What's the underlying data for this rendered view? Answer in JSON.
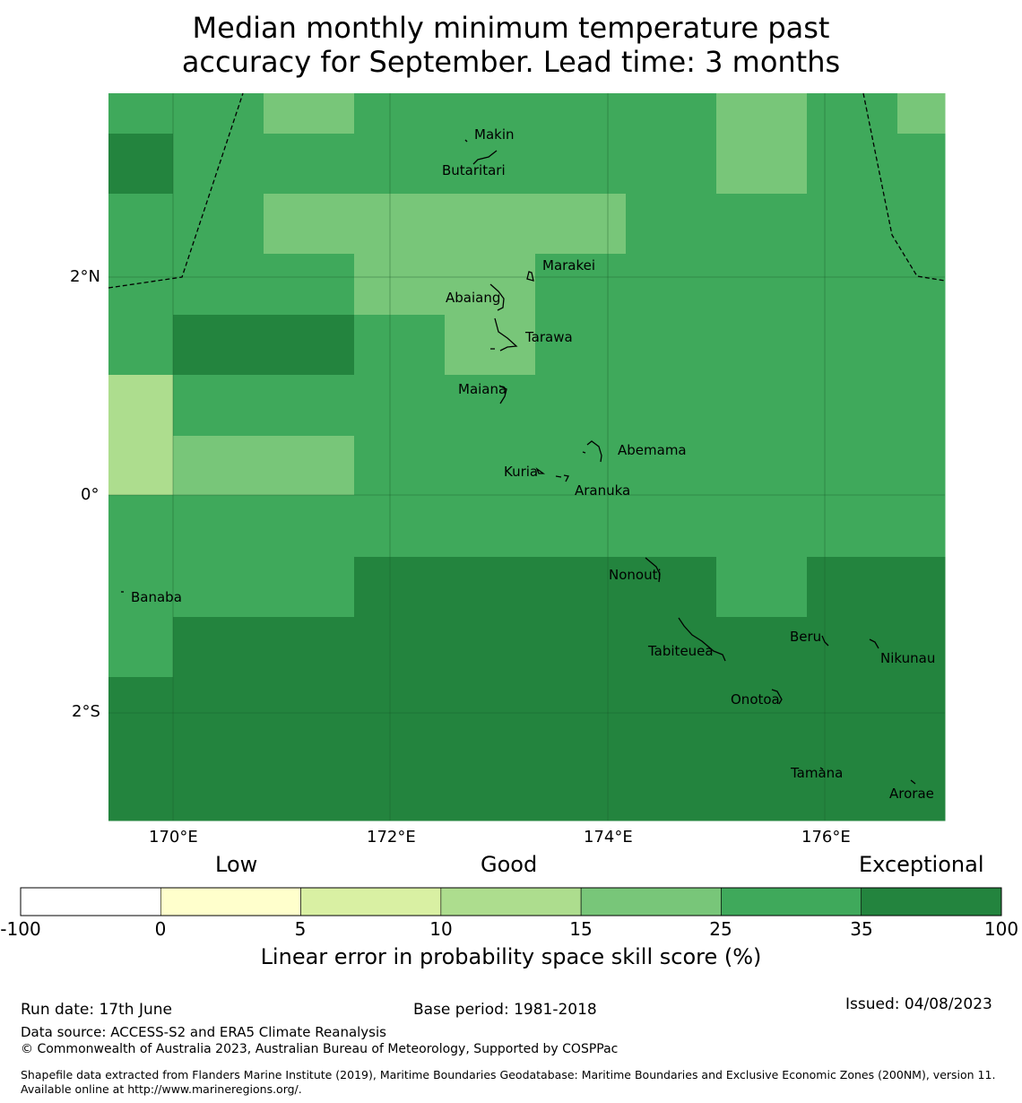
{
  "title_line1": "Median monthly minimum temperature past",
  "title_line2": "accuracy for September. Lead time: 3 months",
  "colors": {
    "c100": "#23843e",
    "c35": "#3fa95b",
    "c25": "#78c679",
    "c15": "#addd8e",
    "c10": "#d9f0a3",
    "c5": "#ffffcc",
    "c0": "#ffffff"
  },
  "grid_classes": [
    [
      "c35",
      "c35",
      "c25",
      "c35",
      "c35",
      "c35",
      "c35",
      "c25",
      "c35",
      "c25"
    ],
    [
      "c100",
      "c35",
      "c35",
      "c35",
      "c35",
      "c35",
      "c35",
      "c25",
      "c35",
      "c35"
    ],
    [
      "c35",
      "c35",
      "c25",
      "c25",
      "c25",
      "c25",
      "c35",
      "c35",
      "c35",
      "c35"
    ],
    [
      "c35",
      "c35",
      "c35",
      "c25",
      "c25",
      "c35",
      "c35",
      "c35",
      "c35",
      "c35"
    ],
    [
      "c35",
      "c100",
      "c100",
      "c35",
      "c25",
      "c35",
      "c35",
      "c35",
      "c35",
      "c35"
    ],
    [
      "c15",
      "c35",
      "c35",
      "c35",
      "c35",
      "c35",
      "c35",
      "c35",
      "c35",
      "c35"
    ],
    [
      "c15",
      "c25",
      "c25",
      "c35",
      "c35",
      "c35",
      "c35",
      "c35",
      "c35",
      "c35"
    ],
    [
      "c35",
      "c35",
      "c35",
      "c35",
      "c35",
      "c35",
      "c35",
      "c35",
      "c35",
      "c35"
    ],
    [
      "c35",
      "c35",
      "c35",
      "c100",
      "c100",
      "c100",
      "c100",
      "c35",
      "c100",
      "c100"
    ],
    [
      "c35",
      "c100",
      "c100",
      "c100",
      "c100",
      "c100",
      "c100",
      "c100",
      "c100",
      "c100"
    ],
    [
      "c100",
      "c100",
      "c100",
      "c100",
      "c100",
      "c100",
      "c100",
      "c100",
      "c100",
      "c100"
    ],
    [
      "c100",
      "c100",
      "c100",
      "c100",
      "c100",
      "c100",
      "c100",
      "c100",
      "c100",
      "c100"
    ]
  ],
  "lat_labels": [
    "2°N",
    "0°",
    "2°S"
  ],
  "lon_labels": [
    "170°E",
    "172°E",
    "174°E",
    "176°E"
  ],
  "places": [
    {
      "id": "makin",
      "name": "Makin"
    },
    {
      "id": "butaritari",
      "name": "Butaritari"
    },
    {
      "id": "marakei",
      "name": "Marakei"
    },
    {
      "id": "abaiang",
      "name": "Abaiang"
    },
    {
      "id": "tarawa",
      "name": "Tarawa"
    },
    {
      "id": "maiana",
      "name": "Maiana"
    },
    {
      "id": "abemama",
      "name": "Abemama"
    },
    {
      "id": "kuria",
      "name": "Kuria"
    },
    {
      "id": "aranuka",
      "name": "Aranuka"
    },
    {
      "id": "nonouti",
      "name": "Nonouti"
    },
    {
      "id": "banaba",
      "name": "Banaba"
    },
    {
      "id": "tabiteuea",
      "name": "Tabiteuea"
    },
    {
      "id": "beru",
      "name": "Beru"
    },
    {
      "id": "nikunau",
      "name": "Nikunau"
    },
    {
      "id": "onotoa",
      "name": "Onotoa"
    },
    {
      "id": "tamana",
      "name": "Tamana"
    },
    {
      "id": "arorae",
      "name": "Arorae"
    }
  ],
  "colorbar": {
    "categories": [
      "Low",
      "Good",
      "Exceptional"
    ],
    "ticks": [
      "-100",
      "0",
      "5",
      "10",
      "15",
      "25",
      "35",
      "100"
    ],
    "segment_classes": [
      "c0",
      "c5",
      "c10",
      "c15",
      "c25",
      "c35",
      "c100"
    ],
    "label": "Linear error in probability space skill score (%)"
  },
  "footer": {
    "run_date": "Run date: 17th June",
    "base_period": "Base period: 1981-2018",
    "issued": "Issued: 04/08/2023",
    "data_source": "Data source: ACCESS-S2 and ERA5 Climate Reanalysis",
    "copyright": "© Commonwealth of Australia 2023, Australian Bureau of Meteorology, Supported by COSPPac",
    "shapefile": "Shapefile data extracted from Flanders Marine Institute (2019), Maritime Boundaries Geodatabase: Maritime Boundaries and Exclusive Economic Zones (200NM), version 11. Available online at http://www.marineregions.org/."
  }
}
